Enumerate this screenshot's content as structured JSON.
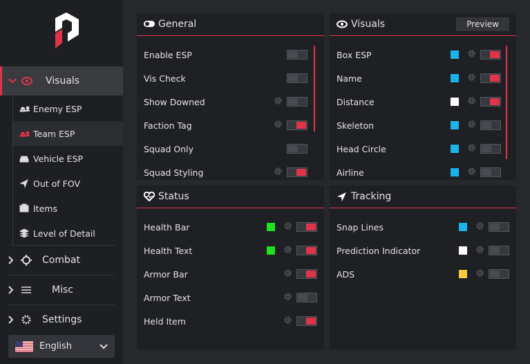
{
  "sidebar": {
    "menu": [
      {
        "label": "Visuals",
        "items": [
          "Enemy ESP",
          "Team ESP",
          "Vehicle ESP",
          "Out of FOV",
          "Items",
          "Level of Detail"
        ]
      },
      {
        "label": "Combat"
      },
      {
        "label": "Misc"
      },
      {
        "label": "Settings"
      }
    ],
    "language": "English"
  },
  "panels": [
    {
      "title": "General",
      "rows": [
        {
          "label": "Enable ESP",
          "toggle": false
        },
        {
          "label": "Vis Check",
          "toggle": false
        },
        {
          "label": "Show Downed",
          "gear": true,
          "toggle": false
        },
        {
          "label": "Faction Tag",
          "gear": true,
          "toggle": true
        },
        {
          "label": "Squad Only",
          "toggle": false
        },
        {
          "label": "Squad Styling",
          "gear": true,
          "toggle": true
        }
      ]
    },
    {
      "title": "Visuals",
      "button": "Preview",
      "rows": [
        {
          "label": "Box ESP",
          "color": "#1ab3ea",
          "gear": true,
          "toggle": true
        },
        {
          "label": "Name",
          "color": "#1ab3ea",
          "gear": true,
          "toggle": true
        },
        {
          "label": "Distance",
          "color": "#ffffff",
          "gear": true,
          "toggle": true
        },
        {
          "label": "Skeleton",
          "color": "#1ab3ea",
          "gear": true,
          "toggle": false
        },
        {
          "label": "Head Circle",
          "color": "#1ab3ea",
          "gear": true,
          "toggle": false
        },
        {
          "label": "Airline",
          "color": "#1ab3ea",
          "gear": true,
          "toggle": false
        }
      ]
    },
    {
      "title": "Status",
      "rows": [
        {
          "label": "Health Bar",
          "color": "#1ee21e",
          "gear": true,
          "toggle": true
        },
        {
          "label": "Health Text",
          "color": "#1ee21e",
          "gear": true,
          "toggle": true
        },
        {
          "label": "Armor Bar",
          "gear": true,
          "toggle": true
        },
        {
          "label": "Armor Text",
          "gear": true,
          "toggle": false
        },
        {
          "label": "Held Item",
          "gear": true,
          "toggle": true
        }
      ]
    },
    {
      "title": "Tracking",
      "rows": [
        {
          "label": "Snap Lines",
          "color": "#1ab3ea",
          "gear": true,
          "toggle": false
        },
        {
          "label": "Prediction Indicator",
          "color": "#ffffff",
          "gear": true,
          "toggle": false
        },
        {
          "label": "ADS",
          "color": "#f6cd3c",
          "gear": true,
          "toggle": false
        }
      ]
    }
  ]
}
